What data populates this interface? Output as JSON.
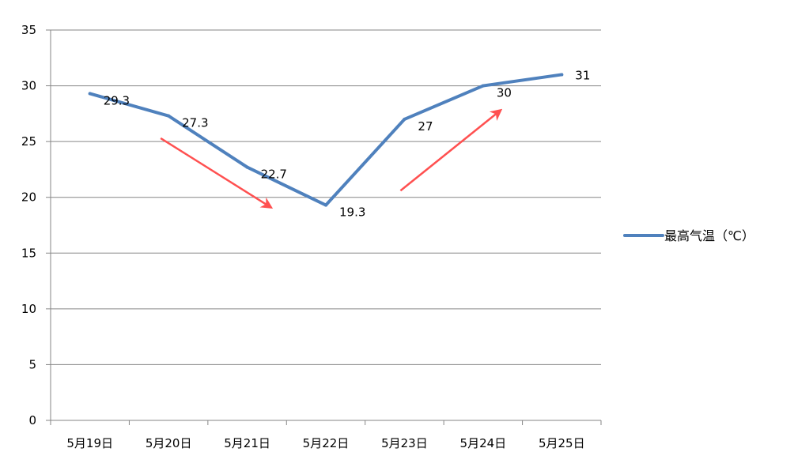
{
  "chart_data": {
    "type": "line",
    "categories": [
      "5月19日",
      "5月20日",
      "5月21日",
      "5月22日",
      "5月23日",
      "5月24日",
      "5月25日"
    ],
    "series": [
      {
        "name": "最高气温（℃）",
        "values": [
          29.3,
          27.3,
          22.7,
          19.3,
          27,
          30,
          31
        ],
        "color": "#4f81bd",
        "labels": [
          "29.3",
          "27.3",
          "22.7",
          "19.3",
          "27",
          "30",
          "31"
        ]
      }
    ],
    "ylim": [
      0,
      35
    ],
    "yticks": [
      0,
      5,
      10,
      15,
      20,
      25,
      30,
      35
    ],
    "grid": true,
    "legend": "right",
    "annotations": [
      {
        "type": "arrow",
        "color": "#ff5050",
        "trend": "down",
        "from_category": "5月20日",
        "to_category": "5月21日"
      },
      {
        "type": "arrow",
        "color": "#ff5050",
        "trend": "up",
        "from_category": "5月23日",
        "to_category": "5月24日"
      }
    ]
  }
}
